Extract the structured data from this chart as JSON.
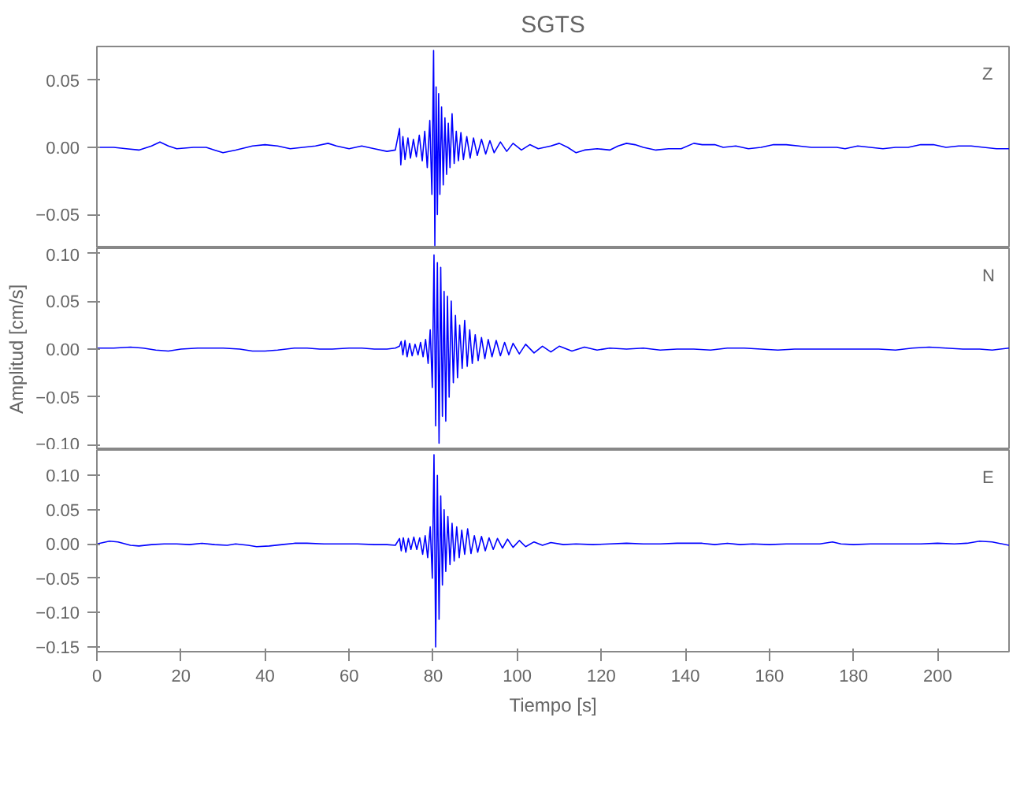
{
  "chart_data": [
    {
      "type": "line",
      "title": "SGTS",
      "annotations": [
        "Z"
      ],
      "tick_labels": "y",
      "grid": false,
      "xlim": [
        0,
        217
      ],
      "ylim": [
        -0.075,
        0.075
      ],
      "yticks": [
        {
          "value": -0.05,
          "label": "−0.05"
        },
        {
          "value": 0,
          "label": "0.00"
        },
        {
          "value": 0.05,
          "label": "0.05"
        }
      ],
      "x": [
        0,
        4,
        7,
        10,
        13,
        15,
        17,
        19,
        23,
        26,
        28,
        30,
        33,
        37,
        40,
        43,
        46,
        49,
        52,
        55,
        57,
        60,
        63,
        66,
        69,
        71,
        72,
        72.3,
        72.8,
        73.3,
        74,
        74.6,
        75.3,
        76,
        76.7,
        77.4,
        78,
        78.6,
        79.2,
        79.7,
        80.1,
        80.4,
        80.7,
        81,
        81.3,
        81.6,
        82,
        82.4,
        82.8,
        83.2,
        83.6,
        84,
        84.5,
        85,
        85.5,
        86,
        86.6,
        87.2,
        88,
        88.8,
        89.6,
        90.5,
        91.5,
        92.5,
        93.5,
        94.5,
        96,
        97.5,
        99,
        101,
        103,
        105,
        108,
        110,
        112,
        114,
        116,
        119,
        122,
        124,
        126,
        128,
        130,
        133,
        136,
        139,
        142,
        144,
        147,
        149,
        152,
        155,
        158,
        161,
        164,
        167,
        170,
        173,
        176,
        178,
        181,
        184,
        187,
        190,
        193,
        196,
        199,
        202,
        205,
        208,
        211,
        214,
        217
      ],
      "series": [
        {
          "color": "#0000ff",
          "values": [
            0.0,
            0.0,
            -0.001,
            -0.002,
            0.001,
            0.004,
            0.001,
            -0.001,
            0.0,
            0.0,
            -0.002,
            -0.004,
            -0.002,
            0.001,
            0.002,
            0.001,
            -0.001,
            0.0,
            0.001,
            0.003,
            0.001,
            -0.001,
            0.001,
            -0.001,
            -0.003,
            -0.002,
            0.014,
            -0.013,
            0.008,
            -0.009,
            0.007,
            -0.008,
            0.006,
            -0.007,
            0.009,
            -0.01,
            0.012,
            -0.015,
            0.02,
            -0.035,
            0.072,
            -0.073,
            0.045,
            -0.05,
            0.04,
            -0.035,
            0.03,
            -0.028,
            0.022,
            -0.02,
            0.018,
            -0.015,
            0.025,
            -0.012,
            0.012,
            -0.01,
            0.011,
            -0.009,
            0.008,
            -0.008,
            0.007,
            -0.006,
            0.006,
            -0.005,
            0.005,
            -0.004,
            0.004,
            -0.003,
            0.003,
            -0.002,
            0.002,
            -0.001,
            0.001,
            0.003,
            0.0,
            -0.004,
            -0.002,
            -0.001,
            -0.002,
            0.001,
            0.003,
            0.002,
            0.0,
            -0.002,
            -0.001,
            -0.001,
            0.003,
            0.002,
            0.002,
            0.0,
            0.001,
            -0.001,
            0.0,
            0.002,
            0.002,
            0.001,
            0.0,
            0.0,
            0.0,
            -0.001,
            0.001,
            0.0,
            -0.001,
            0.0,
            0.0,
            0.002,
            0.002,
            0.0,
            0.001,
            0.001,
            0.0,
            -0.001,
            -0.001
          ]
        }
      ]
    },
    {
      "type": "line",
      "ylabel": "Amplitud [cm/s]",
      "annotations": [
        "N"
      ],
      "tick_labels": "y",
      "grid": false,
      "xlim": [
        0,
        217
      ],
      "ylim": [
        -0.105,
        0.105
      ],
      "yticks": [
        {
          "value": -0.1,
          "label": "−0.10"
        },
        {
          "value": -0.05,
          "label": "−0.05"
        },
        {
          "value": 0,
          "label": "0.00"
        },
        {
          "value": 0.05,
          "label": "0.05"
        },
        {
          "value": 0.1,
          "label": "0.10"
        }
      ],
      "x": [
        0,
        4,
        8,
        11,
        14,
        17,
        20,
        24,
        27,
        30,
        34,
        37,
        40,
        43,
        47,
        50,
        53,
        56,
        60,
        63,
        66,
        69,
        71,
        72,
        72.4,
        72.8,
        73.3,
        73.8,
        74.4,
        75,
        75.7,
        76.4,
        77,
        77.6,
        78.2,
        78.8,
        79.3,
        79.8,
        80.2,
        80.6,
        81,
        81.4,
        81.8,
        82.2,
        82.6,
        83,
        83.4,
        83.8,
        84.3,
        84.8,
        85.3,
        85.8,
        86.3,
        86.9,
        87.5,
        88.1,
        88.7,
        89.3,
        90,
        90.7,
        91.5,
        92.3,
        93.1,
        94,
        95,
        96,
        97,
        98,
        99,
        100.5,
        102,
        104,
        106,
        108,
        110,
        113,
        116,
        119,
        122,
        126,
        130,
        134,
        138,
        142,
        146,
        150,
        154,
        158,
        162,
        166,
        170,
        174,
        178,
        182,
        186,
        190,
        194,
        198,
        202,
        206,
        210,
        213,
        217
      ],
      "series": [
        {
          "color": "#0000ff",
          "values": [
            0.001,
            0.001,
            0.002,
            0.001,
            -0.001,
            -0.002,
            0.0,
            0.001,
            0.001,
            0.001,
            0.0,
            -0.002,
            -0.002,
            -0.001,
            0.001,
            0.001,
            0.0,
            0.0,
            0.001,
            0.001,
            0.0,
            0.0,
            0.001,
            0.003,
            0.008,
            -0.006,
            0.009,
            -0.008,
            0.006,
            -0.007,
            0.005,
            -0.006,
            0.007,
            -0.008,
            0.01,
            -0.015,
            0.02,
            -0.04,
            0.098,
            -0.08,
            0.09,
            -0.098,
            0.085,
            -0.07,
            0.06,
            -0.075,
            0.055,
            -0.05,
            0.05,
            -0.035,
            0.035,
            -0.03,
            0.025,
            -0.02,
            0.03,
            -0.018,
            0.02,
            -0.015,
            0.015,
            -0.012,
            0.012,
            -0.01,
            0.01,
            -0.008,
            0.009,
            -0.007,
            0.007,
            -0.006,
            0.006,
            -0.005,
            0.005,
            -0.004,
            0.003,
            -0.003,
            0.003,
            -0.002,
            0.002,
            -0.001,
            0.001,
            0.0,
            0.001,
            -0.001,
            0.0,
            0.0,
            -0.001,
            0.001,
            0.001,
            0.0,
            -0.001,
            0.0,
            0.0,
            0.0,
            0.0,
            0.0,
            0.0,
            -0.001,
            0.001,
            0.002,
            0.001,
            0.0,
            0.0,
            -0.001,
            0.001
          ]
        }
      ]
    },
    {
      "type": "line",
      "xlabel": "Tiempo [s]",
      "annotations": [
        "E"
      ],
      "grid": false,
      "xlim": [
        0,
        217
      ],
      "xticks": [
        0,
        20,
        40,
        60,
        80,
        100,
        120,
        140,
        160,
        180,
        200
      ],
      "ylim": [
        -0.157,
        0.137
      ],
      "yticks": [
        {
          "value": -0.15,
          "label": "−0.15"
        },
        {
          "value": -0.1,
          "label": "−0.10"
        },
        {
          "value": -0.05,
          "label": "−0.05"
        },
        {
          "value": 0,
          "label": "0.00"
        },
        {
          "value": 0.05,
          "label": "0.05"
        },
        {
          "value": 0.1,
          "label": "0.10"
        }
      ],
      "x": [
        0,
        3,
        5,
        8,
        10,
        13,
        16,
        19,
        22,
        25,
        28,
        31,
        33,
        36,
        38,
        41,
        44,
        47,
        50,
        54,
        58,
        62,
        66,
        69,
        71,
        72,
        72.4,
        72.9,
        73.5,
        74.1,
        74.7,
        75.4,
        76.1,
        76.8,
        77.5,
        78.1,
        78.7,
        79.3,
        79.8,
        80.2,
        80.6,
        81,
        81.4,
        81.8,
        82.2,
        82.6,
        83,
        83.5,
        84,
        84.5,
        85,
        85.6,
        86.2,
        86.8,
        87.5,
        88.2,
        89,
        89.8,
        90.6,
        91.5,
        92.4,
        93.3,
        94.3,
        95.3,
        96.5,
        97.7,
        99,
        100.5,
        102,
        104,
        106,
        108,
        111,
        114,
        118,
        122,
        126,
        130,
        134,
        138,
        141,
        144,
        147,
        150,
        153,
        156,
        160,
        164,
        168,
        172,
        175,
        177,
        180,
        184,
        188,
        192,
        196,
        200,
        204,
        207,
        210,
        213,
        217
      ],
      "series": [
        {
          "color": "#0000ff",
          "values": [
            0.0,
            0.004,
            0.003,
            -0.002,
            -0.003,
            -0.001,
            0.0,
            0.0,
            -0.001,
            0.001,
            -0.001,
            -0.002,
            0.0,
            -0.002,
            -0.004,
            -0.003,
            -0.001,
            0.001,
            0.001,
            0.0,
            0.0,
            0.0,
            -0.001,
            -0.001,
            -0.002,
            0.008,
            -0.01,
            0.009,
            -0.012,
            0.008,
            -0.008,
            0.01,
            -0.008,
            0.009,
            -0.015,
            0.012,
            -0.02,
            0.025,
            -0.05,
            0.13,
            -0.15,
            0.1,
            -0.11,
            0.07,
            -0.06,
            0.05,
            -0.04,
            0.04,
            -0.03,
            0.03,
            -0.025,
            0.025,
            -0.02,
            0.02,
            -0.015,
            0.022,
            -0.014,
            0.012,
            -0.012,
            0.011,
            -0.01,
            0.009,
            -0.008,
            0.008,
            -0.006,
            0.007,
            -0.005,
            0.005,
            -0.004,
            0.003,
            -0.002,
            0.002,
            -0.001,
            0.0,
            -0.001,
            0.0,
            0.001,
            0.0,
            0.0,
            0.001,
            0.001,
            0.001,
            -0.001,
            0.001,
            -0.001,
            0.0,
            -0.001,
            0.0,
            0.0,
            0.0,
            0.003,
            0.0,
            -0.001,
            0.0,
            0.0,
            0.0,
            0.0,
            0.001,
            0.0,
            0.001,
            0.004,
            0.003,
            -0.002
          ]
        }
      ]
    }
  ]
}
